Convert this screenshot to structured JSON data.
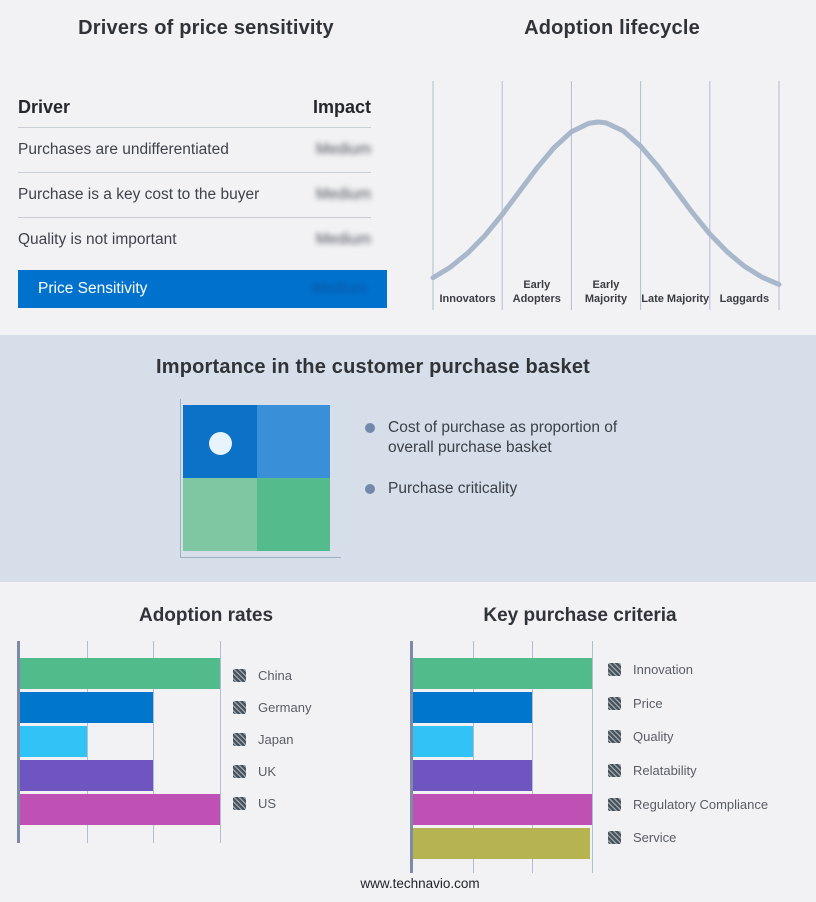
{
  "page": {
    "footer_url": "www.technavio.com",
    "colors": {
      "background": "#F2F2F4",
      "band_background": "#D5DEE9",
      "brand_blue": "#0072CE",
      "gridline": "#B3BDD1",
      "axis": "#7D8CA6"
    }
  },
  "drivers_panel": {
    "title": "Drivers of price sensitivity",
    "columns": [
      "Driver",
      "Impact"
    ],
    "rows": [
      {
        "driver": "Purchases are undifferentiated",
        "impact": "Medium"
      },
      {
        "driver": "Purchase is a key cost to the buyer",
        "impact": "Medium"
      },
      {
        "driver": "Quality is not important",
        "impact": "Medium"
      }
    ],
    "summary_row": {
      "driver": "Price Sensitivity",
      "impact": "Medium"
    },
    "impact_values_blurred": true
  },
  "basket_panel": {
    "title": "Importance in the customer purchase basket",
    "bullets": [
      "Cost of purchase as proportion of overall purchase basket",
      "Purchase criticality"
    ],
    "quadrant": {
      "top_left": "#0B72C8",
      "top_right": "#3990D8",
      "bottom_left": "#7FC7A3",
      "bottom_right": "#54BB8C",
      "marker_dot_color": "#E9F3FB",
      "marker_dot_position": "top-left"
    }
  },
  "chart_data": [
    {
      "id": "adoption-lifecycle",
      "type": "line",
      "title": "Adoption lifecycle",
      "categories": [
        "Innovators",
        "Early Adopters",
        "Early Majority",
        "Late Majority",
        "Laggards"
      ],
      "curve_shape": "bell curve peaking in Early Majority",
      "curve_color": "#A9B7CB",
      "grid": true,
      "curve_points": [
        [
          0,
          0.859
        ],
        [
          0.05,
          0.813
        ],
        [
          0.1,
          0.752
        ],
        [
          0.15,
          0.675
        ],
        [
          0.2,
          0.583
        ],
        [
          0.25,
          0.482
        ],
        [
          0.3,
          0.381
        ],
        [
          0.35,
          0.291
        ],
        [
          0.4,
          0.222
        ],
        [
          0.45,
          0.185
        ],
        [
          0.477,
          0.179
        ],
        [
          0.5,
          0.183
        ],
        [
          0.55,
          0.218
        ],
        [
          0.6,
          0.285
        ],
        [
          0.65,
          0.373
        ],
        [
          0.7,
          0.474
        ],
        [
          0.75,
          0.575
        ],
        [
          0.8,
          0.668
        ],
        [
          0.85,
          0.746
        ],
        [
          0.9,
          0.809
        ],
        [
          0.95,
          0.856
        ],
        [
          1,
          0.888
        ]
      ]
    },
    {
      "id": "adoption-rates",
      "type": "bar",
      "title": "Adoption rates",
      "orientation": "horizontal",
      "categories": [
        "China",
        "Germany",
        "Japan",
        "UK",
        "US"
      ],
      "values": [
        3,
        2,
        1,
        2,
        3
      ],
      "xlim": [
        0,
        3
      ],
      "gridlines": [
        1,
        2,
        3
      ],
      "tick_labels_shown": false,
      "bar_colors": [
        "#52BB8C",
        "#0077CD",
        "#31C3F6",
        "#6F55C0",
        "#BF51B5"
      ],
      "legend_position": "right"
    },
    {
      "id": "key-purchase-criteria",
      "type": "bar",
      "title": "Key purchase criteria",
      "orientation": "horizontal",
      "categories": [
        "Innovation",
        "Price",
        "Quality",
        "Relatability",
        "Regulatory Compliance",
        "Service"
      ],
      "values": [
        3,
        2,
        1,
        2,
        3,
        2.96
      ],
      "xlim": [
        0,
        3
      ],
      "gridlines": [
        1,
        2,
        3
      ],
      "tick_labels_shown": false,
      "bar_colors": [
        "#52BB8C",
        "#0077CD",
        "#31C3F6",
        "#6F55C0",
        "#BF51B5",
        "#B5B451"
      ],
      "legend_position": "right"
    }
  ]
}
